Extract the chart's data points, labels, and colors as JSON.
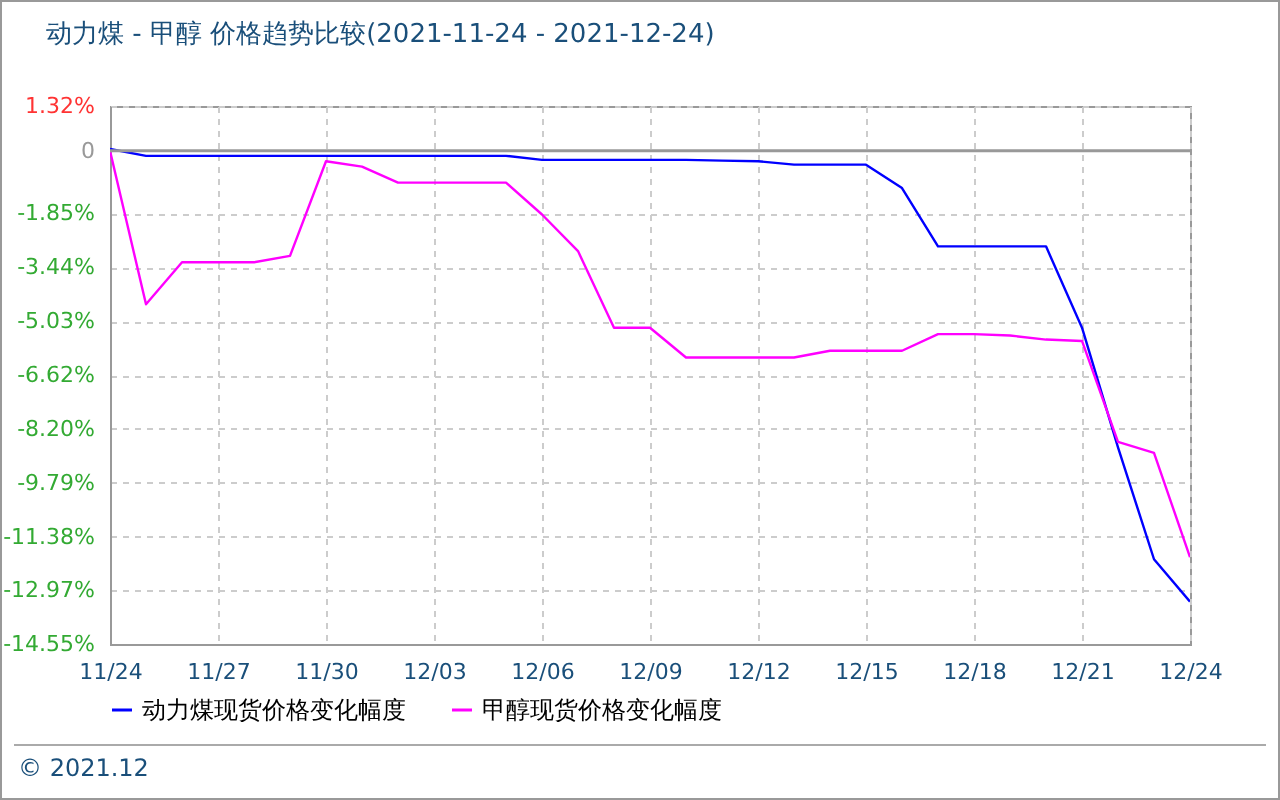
{
  "chart_data": {
    "type": "line",
    "title": "动力煤 - 甲醇 价格趋势比较(2021-11-24 - 2021-12-24)",
    "x": [
      "2021-11-24",
      "2021-11-25",
      "2021-11-26",
      "2021-11-27",
      "2021-11-28",
      "2021-11-29",
      "2021-11-30",
      "2021-12-01",
      "2021-12-02",
      "2021-12-03",
      "2021-12-04",
      "2021-12-05",
      "2021-12-06",
      "2021-12-07",
      "2021-12-08",
      "2021-12-09",
      "2021-12-10",
      "2021-12-11",
      "2021-12-12",
      "2021-12-13",
      "2021-12-14",
      "2021-12-15",
      "2021-12-16",
      "2021-12-17",
      "2021-12-18",
      "2021-12-19",
      "2021-12-20",
      "2021-12-21",
      "2021-12-22",
      "2021-12-23",
      "2021-12-24"
    ],
    "series": [
      {
        "name": "动力煤现货价格变化幅度",
        "color": "#0000ff",
        "values": [
          0.05,
          -0.15,
          -0.15,
          -0.15,
          -0.15,
          -0.15,
          -0.15,
          -0.15,
          -0.15,
          -0.15,
          -0.15,
          -0.15,
          -0.27,
          -0.27,
          -0.27,
          -0.27,
          -0.27,
          -0.29,
          -0.31,
          -0.41,
          -0.41,
          -0.41,
          -1.1,
          -2.82,
          -2.82,
          -2.82,
          -2.82,
          -5.22,
          -8.75,
          -12.05,
          -13.3
        ]
      },
      {
        "name": "甲醇现货价格变化幅度",
        "color": "#ff00ff",
        "values": [
          0,
          -4.53,
          -3.29,
          -3.29,
          -3.29,
          -3.1,
          -0.31,
          -0.47,
          -0.94,
          -0.94,
          -0.94,
          -0.94,
          -1.88,
          -2.96,
          -5.22,
          -5.22,
          -6.1,
          -6.1,
          -6.1,
          -6.1,
          -5.9,
          -5.9,
          -5.9,
          -5.41,
          -5.41,
          -5.45,
          -5.57,
          -5.61,
          -8.59,
          -8.91,
          -11.99
        ]
      }
    ],
    "ylim": [
      -14.55,
      1.32
    ],
    "yticks": [
      {
        "value": 1.32,
        "label": "1.32%"
      },
      0,
      {
        "value": -1.85,
        "label": "-1.85%"
      },
      {
        "value": -3.44,
        "label": "-3.44%"
      },
      {
        "value": -5.03,
        "label": "-5.03%"
      },
      {
        "value": -6.62,
        "label": "-6.62%"
      },
      {
        "value": -8.2,
        "label": "-8.20%"
      },
      {
        "value": -9.79,
        "label": "-9.79%"
      },
      {
        "value": -11.38,
        "label": "-11.38%"
      },
      {
        "value": -12.97,
        "label": "-12.97%"
      },
      {
        "value": -14.55,
        "label": "-14.55%"
      }
    ],
    "xlim": [
      "2021-11-24",
      "2021-12-24"
    ],
    "xticks": [
      {
        "value": "2021-11-24",
        "label": "11/24"
      },
      {
        "value": "2021-11-27",
        "label": "11/27"
      },
      {
        "value": "2021-11-30",
        "label": "11/30"
      },
      {
        "value": "2021-12-03",
        "label": "12/03"
      },
      {
        "value": "2021-12-06",
        "label": "12/06"
      },
      {
        "value": "2021-12-09",
        "label": "12/09"
      },
      {
        "value": "2021-12-12",
        "label": "12/12"
      },
      {
        "value": "2021-12-15",
        "label": "12/15"
      },
      {
        "value": "2021-12-18",
        "label": "12/18"
      },
      {
        "value": "2021-12-21",
        "label": "12/21"
      },
      {
        "value": "2021-12-24",
        "label": "12/24"
      }
    ],
    "ref_lines": [
      {
        "axis": "y",
        "value": 0,
        "color": "#999999"
      }
    ],
    "annotations": [
      "© 2021.12"
    ],
    "grid": true,
    "legend": "bottom",
    "marker": "none",
    "line_style": "solid"
  }
}
